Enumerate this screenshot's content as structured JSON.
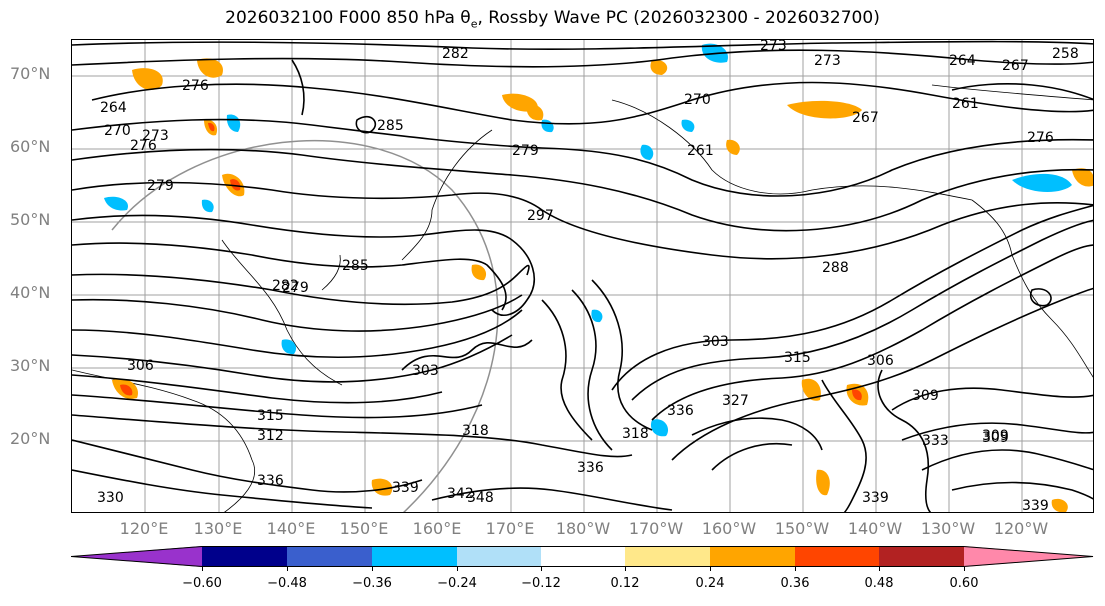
{
  "title": "2026032100 F000 850 hPa θe, Rossby Wave PC (2026032300 - 2026032700)",
  "lat_labels": [
    "70°N",
    "60°N",
    "50°N",
    "40°N",
    "30°N",
    "20°N"
  ],
  "lon_labels": [
    "120°E",
    "130°E",
    "140°E",
    "150°E",
    "160°E",
    "170°E",
    "180°W",
    "170°W",
    "160°W",
    "150°W",
    "140°W",
    "130°W",
    "120°W"
  ],
  "contour_labels": [
    "282",
    "273",
    "273",
    "264",
    "258",
    "276",
    "264",
    "270",
    "276",
    "273",
    "279",
    "270",
    "267",
    "261",
    "267",
    "261",
    "276",
    "285",
    "279",
    "282",
    "297",
    "288",
    "285",
    "279",
    "303",
    "306",
    "303",
    "315",
    "306",
    "309",
    "318",
    "312",
    "309",
    "333",
    "336",
    "327",
    "318",
    "336",
    "342",
    "339",
    "339",
    "348",
    "336",
    "339",
    "330",
    "309",
    "315"
  ],
  "colorbar": {
    "ticks": [
      "−0.60",
      "−0.48",
      "−0.36",
      "−0.24",
      "−0.12",
      "0.12",
      "0.24",
      "0.36",
      "0.48",
      "0.60"
    ],
    "colors": [
      "#9932cc",
      "#00008b",
      "#3a5fcd",
      "#00bfff",
      "#b0e0f8",
      "#ffffff",
      "#ffe88a",
      "#ffa500",
      "#ff4500",
      "#b22222",
      "#ff88aa"
    ]
  }
}
